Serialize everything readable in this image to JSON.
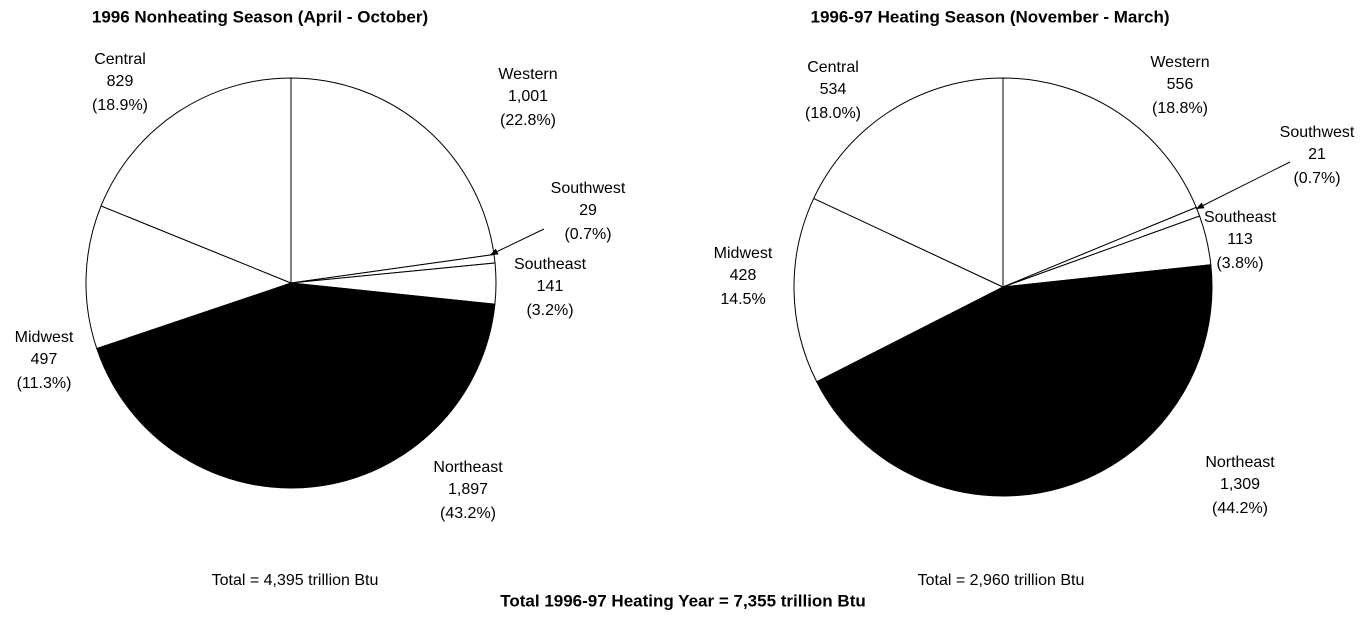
{
  "chart_data": [
    {
      "type": "pie",
      "title": "1996 Nonheating Season (April - October)",
      "categories": [
        "Western",
        "Southwest",
        "Southeast",
        "Northeast",
        "Midwest",
        "Central"
      ],
      "values": [
        1001,
        29,
        141,
        1897,
        497,
        829
      ],
      "value_labels": [
        "1,001",
        "29",
        "141",
        "1,897",
        "497",
        "829"
      ],
      "percent_labels": [
        "(22.8%)",
        "(0.7%)",
        "(3.2%)",
        "(43.2%)",
        "(11.3%)",
        "(18.9%)"
      ],
      "colors": [
        "#ffffff",
        "#ffffff",
        "#ffffff",
        "#000000",
        "#ffffff",
        "#ffffff"
      ],
      "note": "Total = 4,395 trillion Btu"
    },
    {
      "type": "pie",
      "title": "1996-97 Heating Season (November - March)",
      "categories": [
        "Western",
        "Southwest",
        "Southeast",
        "Northeast",
        "Midwest",
        "Central"
      ],
      "values": [
        556,
        21,
        113,
        1309,
        428,
        534
      ],
      "value_labels": [
        "556",
        "21",
        "113",
        "1,309",
        "428",
        "534"
      ],
      "percent_labels": [
        "(18.8%)",
        "(0.7%)",
        "(3.8%)",
        "(44.2%)",
        "14.5%",
        "(18.0%)"
      ],
      "colors": [
        "#ffffff",
        "#ffffff",
        "#ffffff",
        "#000000",
        "#ffffff",
        "#ffffff"
      ],
      "note": "Total = 2,960 trillion Btu"
    }
  ],
  "caption": "Total 1996-97 Heating Year = 7,355 trillion Btu"
}
